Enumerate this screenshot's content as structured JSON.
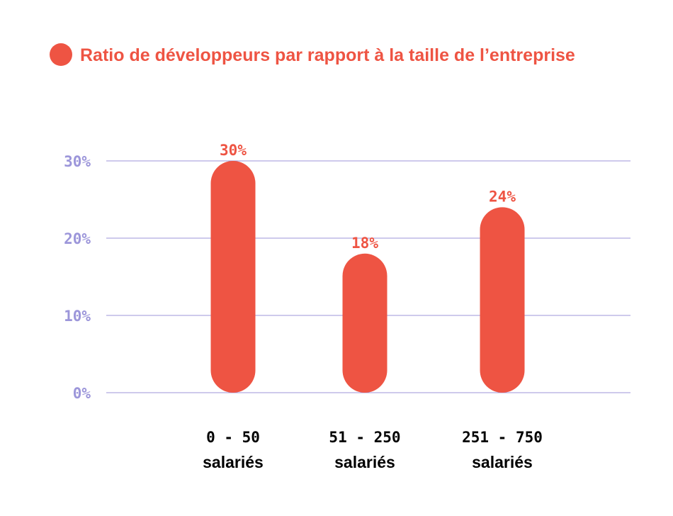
{
  "colors": {
    "accent": "#EE5443",
    "axis_text": "#9C96DA",
    "grid": "#9C96DA",
    "category_text": "#000000"
  },
  "chart_data": {
    "type": "bar",
    "title": "Ratio de développeurs par rapport à la taille de l’entreprise",
    "categories": [
      [
        "0 - 50",
        "salariés"
      ],
      [
        "51 - 250",
        "salariés"
      ],
      [
        "251 - 750",
        "salariés"
      ]
    ],
    "values": [
      30,
      18,
      24
    ],
    "value_labels": [
      "30%",
      "18%",
      "24%"
    ],
    "yticks": [
      0,
      10,
      20,
      30
    ],
    "ytick_labels": [
      "0%",
      "10%",
      "20%",
      "30%"
    ],
    "ylim": [
      0,
      30
    ],
    "grid": true,
    "legend": "top-left"
  }
}
